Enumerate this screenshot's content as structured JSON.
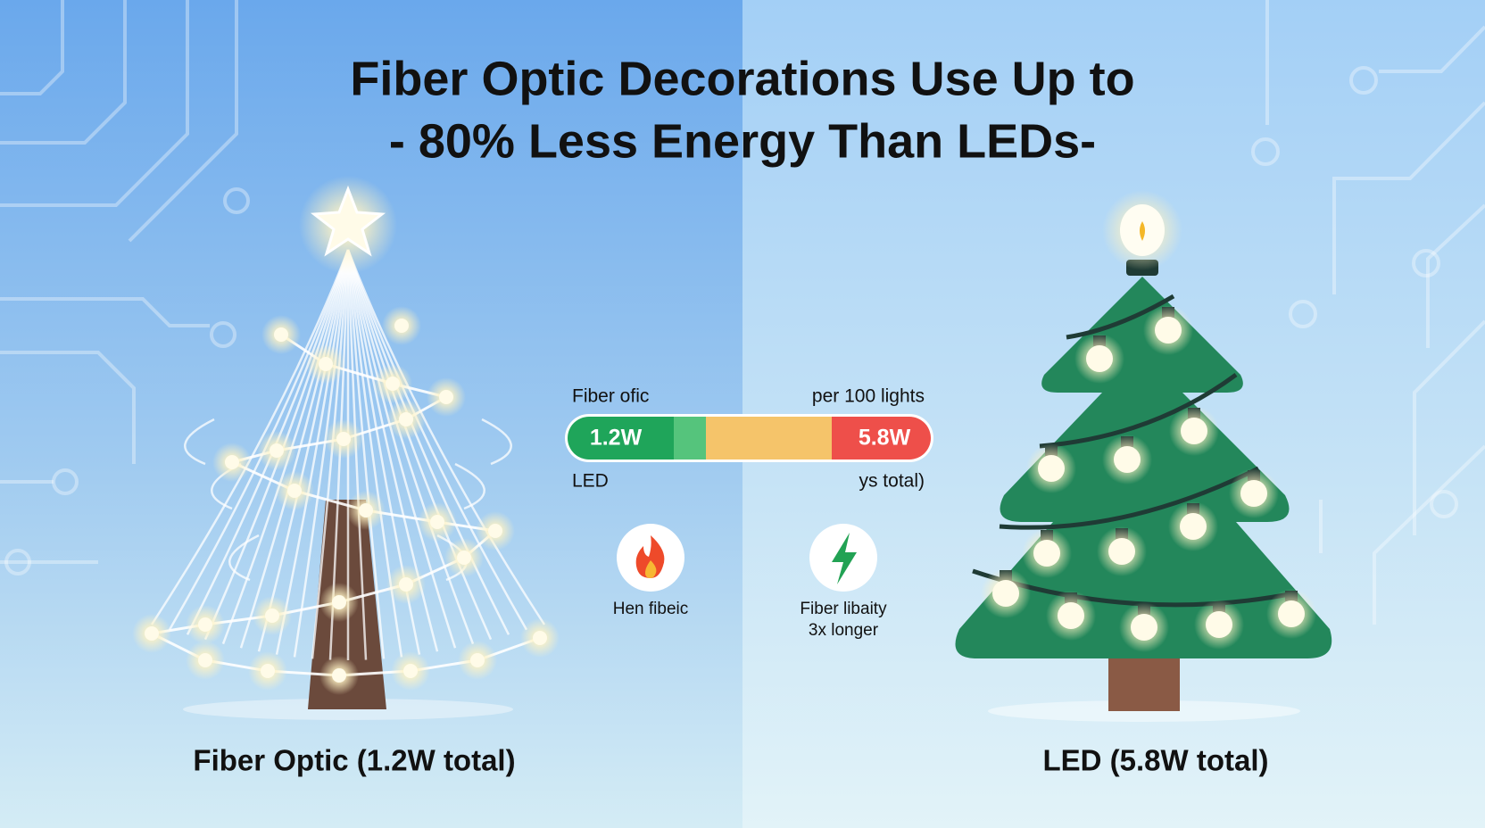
{
  "title": {
    "line1": "Fiber Optic Decorations Use Up to",
    "line2": "- 80% Less Energy Than LEDs-"
  },
  "comparison_bar": {
    "top_left": "Fiber ofic",
    "top_right": "per 100 lights",
    "left_value": "1.2W",
    "right_value": "5.8W",
    "bottom_left": "LED",
    "bottom_right": "ys total)"
  },
  "icons": [
    {
      "lines": [
        "Hen fibeic"
      ]
    },
    {
      "lines": [
        "Fiber libaity",
        "3x longer"
      ]
    }
  ],
  "captions": {
    "left": "Fiber Optic (1.2W total)",
    "right": "LED (5.8W total)"
  }
}
